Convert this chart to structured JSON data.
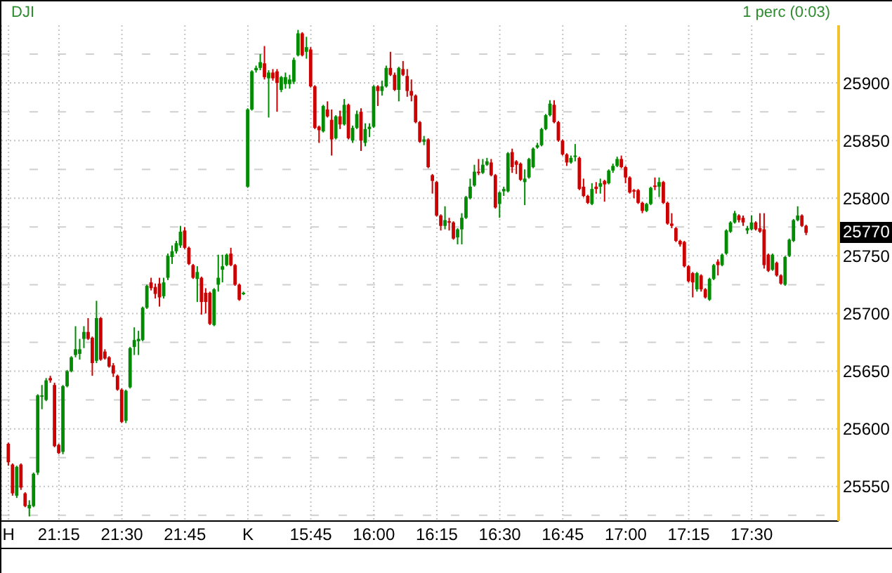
{
  "chart_data": {
    "type": "candlestick",
    "title": "DJI",
    "subtitle": "1 perc (0:03)",
    "categories": [
      "H",
      null,
      null,
      null,
      null,
      null,
      null,
      null,
      null,
      null,
      null,
      null,
      "21:15",
      null,
      null,
      null,
      null,
      null,
      null,
      null,
      null,
      null,
      null,
      null,
      null,
      null,
      null,
      "21:30",
      null,
      null,
      null,
      null,
      null,
      null,
      null,
      null,
      null,
      null,
      null,
      null,
      null,
      null,
      "21:45",
      null,
      null,
      null,
      null,
      null,
      null,
      null,
      null,
      null,
      null,
      null,
      null,
      null,
      null,
      "K",
      null,
      null,
      null,
      null,
      null,
      null,
      null,
      null,
      null,
      null,
      null,
      null,
      null,
      null,
      "15:45",
      null,
      null,
      null,
      null,
      null,
      null,
      null,
      null,
      null,
      null,
      null,
      null,
      null,
      null,
      "16:00",
      null,
      null,
      null,
      null,
      null,
      null,
      null,
      null,
      null,
      null,
      null,
      null,
      null,
      null,
      "16:15",
      null,
      null,
      null,
      null,
      null,
      null,
      null,
      null,
      null,
      null,
      null,
      null,
      null,
      null,
      "16:30",
      null,
      null,
      null,
      null,
      null,
      null,
      null,
      null,
      null,
      null,
      null,
      null,
      null,
      null,
      "16:45",
      null,
      null,
      null,
      null,
      null,
      null,
      null,
      null,
      null,
      null,
      null,
      null,
      null,
      null,
      "17:00",
      null,
      null,
      null,
      null,
      null,
      null,
      null,
      null,
      null,
      null,
      null,
      null,
      null,
      null,
      "17:15",
      null,
      null,
      null,
      null,
      null,
      null,
      null,
      null,
      null,
      null,
      null,
      null,
      null,
      null,
      "17:30",
      null,
      null,
      null,
      null,
      null,
      null,
      null,
      null,
      null,
      null,
      null,
      null,
      null
    ],
    "ohlc": [
      [
        25587,
        25588,
        25568,
        25571
      ],
      [
        25569,
        25570,
        25542,
        25544
      ],
      [
        25542,
        25568,
        25540,
        25567
      ],
      [
        25569,
        25570,
        25547,
        25549
      ],
      [
        25544,
        25545,
        25532,
        25533
      ],
      [
        25531,
        25538,
        25524,
        25534
      ],
      [
        25533,
        25562,
        25532,
        25561
      ],
      [
        25562,
        25630,
        25560,
        25629
      ],
      [
        25628,
        25638,
        25617,
        25629
      ],
      [
        25625,
        25644,
        25624,
        25642
      ],
      [
        25644,
        25646,
        25640,
        25642
      ],
      [
        25638,
        25640,
        25584,
        25585
      ],
      [
        25586,
        25587,
        25578,
        25579
      ],
      [
        25580,
        25638,
        25578,
        25637
      ],
      [
        25637,
        25651,
        25636,
        25650
      ],
      [
        25650,
        25663,
        25649,
        25662
      ],
      [
        25664,
        25689,
        25662,
        25669
      ],
      [
        25665,
        25678,
        25660,
        25669
      ],
      [
        25678,
        25689,
        25670,
        25684
      ],
      [
        25684,
        25696,
        25677,
        25678
      ],
      [
        25679,
        25680,
        25646,
        25657
      ],
      [
        25659,
        25711,
        25657,
        25696
      ],
      [
        25696,
        25697,
        25659,
        25660
      ],
      [
        25667,
        25669,
        25660,
        25661
      ],
      [
        25662,
        25663,
        25653,
        25654
      ],
      [
        25655,
        25657,
        25645,
        25648
      ],
      [
        25646,
        25647,
        25633,
        25634
      ],
      [
        25634,
        25635,
        25605,
        25606
      ],
      [
        25607,
        25634,
        25605,
        25633
      ],
      [
        25636,
        25671,
        25635,
        25670
      ],
      [
        25671,
        25688,
        25664,
        25677
      ],
      [
        25676,
        25685,
        25664,
        25678
      ],
      [
        25677,
        25706,
        25676,
        25705
      ],
      [
        25705,
        25725,
        25704,
        25724
      ],
      [
        25727,
        25731,
        25720,
        25722
      ],
      [
        25723,
        25726,
        25713,
        25717
      ],
      [
        25726,
        25731,
        25706,
        25714
      ],
      [
        25715,
        25731,
        25713,
        25727
      ],
      [
        25731,
        25752,
        25729,
        25750
      ],
      [
        25749,
        25759,
        25743,
        25754
      ],
      [
        25754,
        25763,
        25752,
        25761
      ],
      [
        25759,
        25776,
        25757,
        25771
      ],
      [
        25772,
        25775,
        25756,
        25757
      ],
      [
        25757,
        25758,
        25742,
        25743
      ],
      [
        25742,
        25743,
        25730,
        25731
      ],
      [
        25730,
        25741,
        25710,
        25736
      ],
      [
        25731,
        25732,
        25699,
        25710
      ],
      [
        25718,
        25722,
        25700,
        25710
      ],
      [
        25718,
        25719,
        25690,
        25691
      ],
      [
        25690,
        25722,
        25689,
        25721
      ],
      [
        25725,
        25751,
        25719,
        25731
      ],
      [
        25738,
        25751,
        25727,
        25741
      ],
      [
        25742,
        25752,
        25741,
        25751
      ],
      [
        25752,
        25757,
        25741,
        25742
      ],
      [
        25742,
        25743,
        25724,
        25725
      ],
      [
        25725,
        25726,
        25711,
        25712
      ],
      [
        25717,
        25719,
        25716,
        25718
      ],
      [
        25810,
        25878,
        25809,
        25877
      ],
      [
        25877,
        25911,
        25876,
        25910
      ],
      [
        25911,
        25915,
        25909,
        25913
      ],
      [
        25913,
        25925,
        25911,
        25918
      ],
      [
        25917,
        25932,
        25903,
        25905
      ],
      [
        25904,
        25911,
        25870,
        25909
      ],
      [
        25909,
        25912,
        25902,
        25904
      ],
      [
        25910,
        25912,
        25875,
        25900
      ],
      [
        25894,
        25906,
        25892,
        25905
      ],
      [
        25899,
        25909,
        25895,
        25905
      ],
      [
        25899,
        25907,
        25895,
        25903
      ],
      [
        25901,
        25922,
        25899,
        25920
      ],
      [
        25924,
        25946,
        25923,
        25943
      ],
      [
        25943,
        25944,
        25923,
        25924
      ],
      [
        25927,
        25940,
        25921,
        25931
      ],
      [
        25929,
        25931,
        25896,
        25897
      ],
      [
        25897,
        25898,
        25860,
        25861
      ],
      [
        25862,
        25863,
        25848,
        25859
      ],
      [
        25858,
        25881,
        25857,
        25880
      ],
      [
        25877,
        25884,
        25870,
        25871
      ],
      [
        25868,
        25877,
        25837,
        25851
      ],
      [
        25852,
        25872,
        25851,
        25871
      ],
      [
        25871,
        25876,
        25860,
        25864
      ],
      [
        25864,
        25886,
        25863,
        25881
      ],
      [
        25881,
        25882,
        25851,
        25852
      ],
      [
        25850,
        25863,
        25848,
        25861
      ],
      [
        25861,
        25876,
        25860,
        25873
      ],
      [
        25875,
        25878,
        25841,
        25850
      ],
      [
        25848,
        25865,
        25845,
        25860
      ],
      [
        25860,
        25865,
        25853,
        25862
      ],
      [
        25862,
        25898,
        25861,
        25897
      ],
      [
        25897,
        25898,
        25880,
        25893
      ],
      [
        25893,
        25902,
        25889,
        25897
      ],
      [
        25897,
        25915,
        25896,
        25913
      ],
      [
        25913,
        25927,
        25906,
        25907
      ],
      [
        25907,
        25909,
        25893,
        25894
      ],
      [
        25894,
        25914,
        25884,
        25913
      ],
      [
        25912,
        25919,
        25906,
        25907
      ],
      [
        25906,
        25912,
        25888,
        25893
      ],
      [
        25893,
        25903,
        25884,
        25889
      ],
      [
        25889,
        25890,
        25865,
        25866
      ],
      [
        25866,
        25867,
        25848,
        25849
      ],
      [
        25849,
        25854,
        25846,
        25851
      ],
      [
        25851,
        25852,
        25826,
        25827
      ],
      [
        25820,
        25821,
        25804,
        25815
      ],
      [
        25814,
        25815,
        25784,
        25785
      ],
      [
        25785,
        25786,
        25772,
        25776
      ],
      [
        25776,
        25793,
        25773,
        25781
      ],
      [
        25780,
        25783,
        25772,
        25779
      ],
      [
        25779,
        25780,
        25764,
        25765
      ],
      [
        25766,
        25774,
        25760,
        25773
      ],
      [
        25773,
        25787,
        25760,
        25783
      ],
      [
        25783,
        25802,
        25782,
        25801
      ],
      [
        25800,
        25817,
        25799,
        25810
      ],
      [
        25811,
        25829,
        25810,
        25823
      ],
      [
        25823,
        25834,
        25820,
        25822
      ],
      [
        25822,
        25834,
        25821,
        25829
      ],
      [
        25829,
        25835,
        25828,
        25832
      ],
      [
        25831,
        25834,
        25819,
        25820
      ],
      [
        25820,
        25821,
        25791,
        25792
      ],
      [
        25795,
        25806,
        25783,
        25805
      ],
      [
        25806,
        25810,
        25802,
        25808
      ],
      [
        25806,
        25840,
        25805,
        25839
      ],
      [
        25840,
        25843,
        25822,
        25827
      ],
      [
        25832,
        25833,
        25821,
        25829
      ],
      [
        25830,
        25831,
        25815,
        25816
      ],
      [
        25814,
        25825,
        25794,
        25817
      ],
      [
        25818,
        25835,
        25817,
        25834
      ],
      [
        25827,
        25844,
        25826,
        25843
      ],
      [
        25844,
        25848,
        25843,
        25846
      ],
      [
        25846,
        25861,
        25845,
        25860
      ],
      [
        25860,
        25873,
        25859,
        25872
      ],
      [
        25872,
        25885,
        25871,
        25882
      ],
      [
        25881,
        25885,
        25865,
        25866
      ],
      [
        25866,
        25867,
        25849,
        25850
      ],
      [
        25850,
        25851,
        25837,
        25838
      ],
      [
        25838,
        25839,
        25828,
        25831
      ],
      [
        25831,
        25837,
        25830,
        25835
      ],
      [
        25836,
        25847,
        25832,
        25837
      ],
      [
        25835,
        25836,
        25807,
        25808
      ],
      [
        25810,
        25817,
        25801,
        25802
      ],
      [
        25802,
        25803,
        25795,
        25796
      ],
      [
        25795,
        25813,
        25794,
        25808
      ],
      [
        25810,
        25814,
        25804,
        25808
      ],
      [
        25810,
        25817,
        25804,
        25813
      ],
      [
        25815,
        25816,
        25797,
        25812
      ],
      [
        25813,
        25825,
        25812,
        25824
      ],
      [
        25824,
        25830,
        25822,
        25828
      ],
      [
        25828,
        25836,
        25827,
        25834
      ],
      [
        25834,
        25837,
        25826,
        25827
      ],
      [
        25827,
        25828,
        25813,
        25818
      ],
      [
        25818,
        25819,
        25804,
        25805
      ],
      [
        25807,
        25808,
        25800,
        25806
      ],
      [
        25807,
        25808,
        25795,
        25796
      ],
      [
        25796,
        25797,
        25787,
        25789
      ],
      [
        25789,
        25796,
        25788,
        25795
      ],
      [
        25795,
        25810,
        25794,
        25809
      ],
      [
        25811,
        25818,
        25807,
        25810
      ],
      [
        25810,
        25818,
        25801,
        25814
      ],
      [
        25814,
        25815,
        25795,
        25796
      ],
      [
        25796,
        25797,
        25777,
        25778
      ],
      [
        25778,
        25787,
        25774,
        25776
      ],
      [
        25774,
        25775,
        25762,
        25763
      ],
      [
        25763,
        25764,
        25758,
        25760
      ],
      [
        25762,
        25763,
        25740,
        25741
      ],
      [
        25741,
        25742,
        25727,
        25728
      ],
      [
        25735,
        25736,
        25714,
        25727
      ],
      [
        25721,
        25736,
        25719,
        25735
      ],
      [
        25733,
        25734,
        25719,
        25721
      ],
      [
        25721,
        25722,
        25713,
        25714
      ],
      [
        25712,
        25731,
        25711,
        25730
      ],
      [
        25730,
        25743,
        25729,
        25742
      ],
      [
        25745,
        25747,
        25733,
        25742
      ],
      [
        25742,
        25752,
        25741,
        25751
      ],
      [
        25752,
        25773,
        25751,
        25772
      ],
      [
        25771,
        25780,
        25770,
        25779
      ],
      [
        25779,
        25789,
        25778,
        25787
      ],
      [
        25785,
        25786,
        25779,
        25781
      ],
      [
        25783,
        25785,
        25776,
        25779
      ],
      [
        25772,
        25776,
        25769,
        25774
      ],
      [
        25773,
        25785,
        25772,
        25779
      ],
      [
        25779,
        25780,
        25772,
        25773
      ],
      [
        25774,
        25787,
        25770,
        25771
      ],
      [
        25773,
        25787,
        25739,
        25742
      ],
      [
        25751,
        25752,
        25736,
        25737
      ],
      [
        25738,
        25752,
        25737,
        25751
      ],
      [
        25744,
        25745,
        25732,
        25733
      ],
      [
        25733,
        25734,
        25725,
        25726
      ],
      [
        25725,
        25750,
        25724,
        25749
      ],
      [
        25750,
        25765,
        25749,
        25764
      ],
      [
        25763,
        25782,
        25762,
        25781
      ],
      [
        25781,
        25793,
        25780,
        25785
      ],
      [
        25785,
        25786,
        25775,
        25776
      ],
      [
        25776,
        25777,
        25768,
        25770
      ]
    ],
    "colors": [
      "#cc0000",
      "#cc0000",
      "#008c00",
      "#cc0000",
      "#cc0000",
      "#008c00",
      "#008c00",
      "#008c00",
      "#008c00",
      "#008c00",
      "#cc0000",
      "#cc0000",
      "#cc0000",
      "#008c00",
      "#008c00",
      "#008c00",
      "#008c00",
      "#008c00",
      "#008c00",
      "#cc0000",
      "#cc0000",
      "#008c00",
      "#cc0000",
      "#cc0000",
      "#cc0000",
      "#cc0000",
      "#cc0000",
      "#cc0000",
      "#008c00",
      "#008c00",
      "#008c00",
      "#008c00",
      "#008c00",
      "#008c00",
      "#cc0000",
      "#cc0000",
      "#cc0000",
      "#008c00",
      "#008c00",
      "#008c00",
      "#008c00",
      "#008c00",
      "#cc0000",
      "#cc0000",
      "#cc0000",
      "#008c00",
      "#cc0000",
      "#cc0000",
      "#cc0000",
      "#008c00",
      "#008c00",
      "#008c00",
      "#008c00",
      "#cc0000",
      "#cc0000",
      "#cc0000",
      "#008c00",
      "#008c00",
      "#008c00",
      "#008c00",
      "#008c00",
      "#cc0000",
      "#008c00",
      "#cc0000",
      "#cc0000",
      "#008c00",
      "#008c00",
      "#008c00",
      "#008c00",
      "#008c00",
      "#cc0000",
      "#008c00",
      "#cc0000",
      "#cc0000",
      "#cc0000",
      "#008c00",
      "#cc0000",
      "#cc0000",
      "#008c00",
      "#cc0000",
      "#008c00",
      "#cc0000",
      "#008c00",
      "#008c00",
      "#cc0000",
      "#008c00",
      "#008c00",
      "#008c00",
      "#cc0000",
      "#008c00",
      "#008c00",
      "#cc0000",
      "#cc0000",
      "#008c00",
      "#cc0000",
      "#cc0000",
      "#cc0000",
      "#cc0000",
      "#cc0000",
      "#008c00",
      "#cc0000",
      "#cc0000",
      "#cc0000",
      "#cc0000",
      "#008c00",
      "#cc0000",
      "#cc0000",
      "#008c00",
      "#008c00",
      "#008c00",
      "#008c00",
      "#008c00",
      "#cc0000",
      "#008c00",
      "#008c00",
      "#cc0000",
      "#cc0000",
      "#008c00",
      "#008c00",
      "#008c00",
      "#cc0000",
      "#cc0000",
      "#cc0000",
      "#008c00",
      "#008c00",
      "#008c00",
      "#008c00",
      "#008c00",
      "#008c00",
      "#008c00",
      "#cc0000",
      "#cc0000",
      "#cc0000",
      "#cc0000",
      "#008c00",
      "#008c00",
      "#cc0000",
      "#cc0000",
      "#cc0000",
      "#008c00",
      "#cc0000",
      "#008c00",
      "#cc0000",
      "#008c00",
      "#008c00",
      "#008c00",
      "#cc0000",
      "#cc0000",
      "#cc0000",
      "#cc0000",
      "#cc0000",
      "#cc0000",
      "#008c00",
      "#008c00",
      "#cc0000",
      "#008c00",
      "#cc0000",
      "#cc0000",
      "#cc0000",
      "#cc0000",
      "#cc0000",
      "#cc0000",
      "#cc0000",
      "#cc0000",
      "#008c00",
      "#cc0000",
      "#cc0000",
      "#008c00",
      "#008c00",
      "#cc0000",
      "#008c00",
      "#008c00",
      "#008c00",
      "#008c00",
      "#cc0000",
      "#cc0000",
      "#008c00",
      "#008c00",
      "#cc0000",
      "#cc0000",
      "#cc0000",
      "#cc0000",
      "#008c00",
      "#cc0000",
      "#cc0000",
      "#008c00",
      "#008c00",
      "#008c00",
      "#008c00",
      "#cc0000",
      "#cc0000"
    ],
    "ylim": [
      25520,
      25950
    ],
    "yticks": [
      {
        "value": 25525,
        "label": null
      },
      25550,
      {
        "value": 25575,
        "label": null
      },
      25600,
      {
        "value": 25625,
        "label": null
      },
      25650,
      {
        "value": 25675,
        "label": null
      },
      25700,
      {
        "value": 25725,
        "label": null
      },
      25750,
      {
        "value": 25775,
        "label": null
      },
      25800,
      {
        "value": 25825,
        "label": null
      },
      25850,
      {
        "value": 25875,
        "label": null
      },
      25900,
      {
        "value": 25925,
        "label": null
      }
    ],
    "grid": true,
    "annotations": [
      "25770"
    ]
  }
}
